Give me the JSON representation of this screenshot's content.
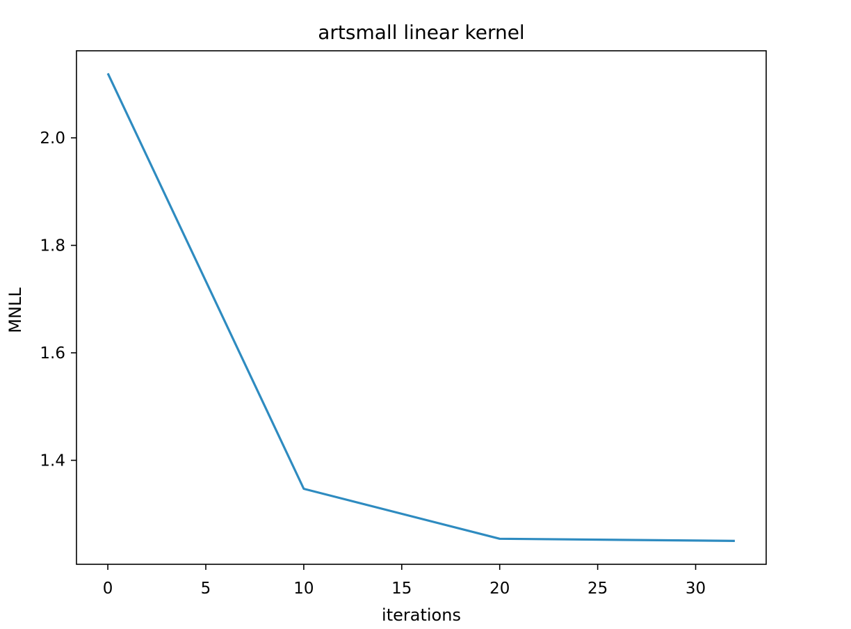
{
  "chart_data": {
    "type": "line",
    "title": "artsmall linear kernel",
    "xlabel": "iterations",
    "ylabel": "MNLL",
    "xlim": [
      -1.6,
      33.6
    ],
    "ylim": [
      1.2065,
      2.162
    ],
    "xticks": [
      0,
      5,
      10,
      15,
      20,
      25,
      30
    ],
    "xtick_labels": [
      "0",
      "5",
      "10",
      "15",
      "20",
      "25",
      "30"
    ],
    "yticks": [
      1.4,
      1.6,
      1.8,
      2.0
    ],
    "ytick_labels": [
      "1.4",
      "1.6",
      "1.8",
      "2.0"
    ],
    "grid": false,
    "series": [
      {
        "color": "#2e8bc0",
        "x": [
          0,
          10,
          20,
          32
        ],
        "y": [
          2.12,
          1.347,
          1.254,
          1.25
        ]
      }
    ]
  }
}
